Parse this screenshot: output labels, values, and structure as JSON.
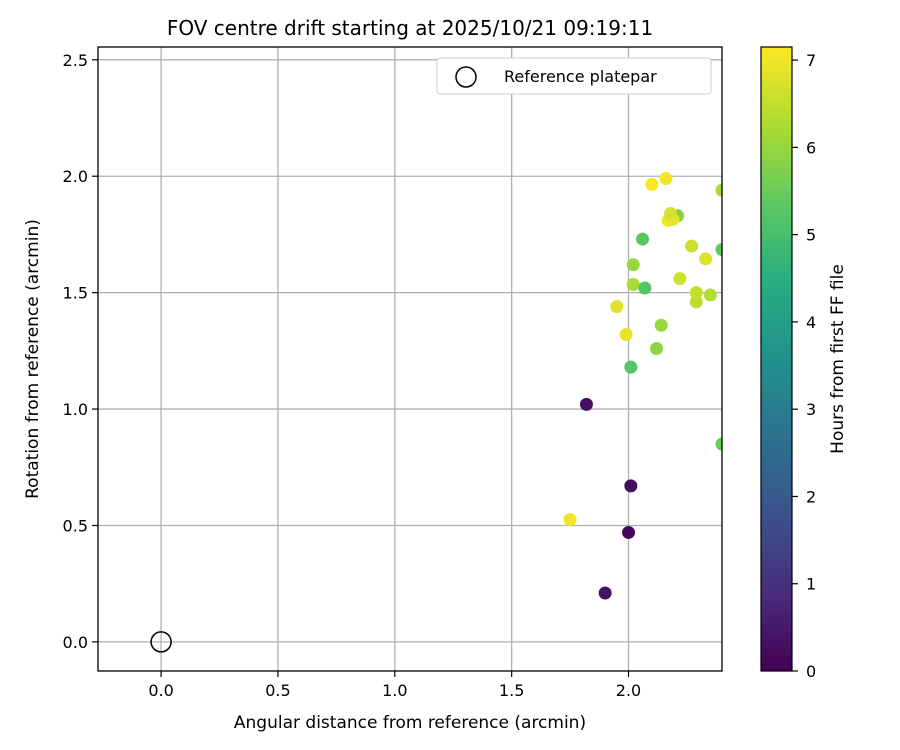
{
  "chart_data": {
    "type": "scatter",
    "title": "FOV centre drift starting at 2025/10/21 09:19:11",
    "xlabel": "Angular distance from reference (arcmin)",
    "ylabel": "Rotation from reference (arcmin)",
    "xlim": [
      -0.27,
      2.4
    ],
    "ylim": [
      -0.125,
      2.555
    ],
    "xticks": [
      0.0,
      0.5,
      1.0,
      1.5,
      2.0
    ],
    "xtick_labels": [
      "0.0",
      "0.5",
      "1.0",
      "1.5",
      "2.0"
    ],
    "yticks": [
      0.0,
      0.5,
      1.0,
      1.5,
      2.0,
      2.5
    ],
    "ytick_labels": [
      "0.0",
      "0.5",
      "1.0",
      "1.5",
      "2.0",
      "2.5"
    ],
    "grid": true,
    "legend": {
      "position": "top-right",
      "entries": [
        "Reference platepar"
      ]
    },
    "reference_point": {
      "x": 0.0,
      "y": 0.0
    },
    "colorbar": {
      "label": "Hours from first FF file",
      "colormap": "viridis",
      "range": [
        0,
        7.15
      ],
      "ticks": [
        0,
        1,
        2,
        3,
        4,
        5,
        6,
        7
      ],
      "tick_labels": [
        "0",
        "1",
        "2",
        "3",
        "4",
        "5",
        "6",
        "7"
      ]
    },
    "points": [
      {
        "x": 1.82,
        "y": 1.02,
        "hours": 0.3
      },
      {
        "x": 2.01,
        "y": 0.67,
        "hours": 0.2
      },
      {
        "x": 2.0,
        "y": 0.47,
        "hours": 0.15
      },
      {
        "x": 1.9,
        "y": 0.21,
        "hours": 0.4
      },
      {
        "x": 1.75,
        "y": 0.525,
        "hours": 7.0
      },
      {
        "x": 2.01,
        "y": 1.18,
        "hours": 5.2
      },
      {
        "x": 1.99,
        "y": 1.32,
        "hours": 6.9
      },
      {
        "x": 2.12,
        "y": 1.26,
        "hours": 5.9
      },
      {
        "x": 2.14,
        "y": 1.36,
        "hours": 6.0
      },
      {
        "x": 1.95,
        "y": 1.44,
        "hours": 6.8
      },
      {
        "x": 2.02,
        "y": 1.535,
        "hours": 6.2
      },
      {
        "x": 2.07,
        "y": 1.52,
        "hours": 5.2
      },
      {
        "x": 2.02,
        "y": 1.62,
        "hours": 6.0
      },
      {
        "x": 2.06,
        "y": 1.73,
        "hours": 5.3
      },
      {
        "x": 2.22,
        "y": 1.56,
        "hours": 6.6
      },
      {
        "x": 2.29,
        "y": 1.5,
        "hours": 6.5
      },
      {
        "x": 2.29,
        "y": 1.46,
        "hours": 6.4
      },
      {
        "x": 2.35,
        "y": 1.49,
        "hours": 6.3
      },
      {
        "x": 2.27,
        "y": 1.7,
        "hours": 6.6
      },
      {
        "x": 2.33,
        "y": 1.645,
        "hours": 6.8
      },
      {
        "x": 2.4,
        "y": 1.685,
        "hours": 5.4
      },
      {
        "x": 2.21,
        "y": 1.83,
        "hours": 5.8
      },
      {
        "x": 2.17,
        "y": 1.81,
        "hours": 7.0
      },
      {
        "x": 2.19,
        "y": 1.815,
        "hours": 6.9
      },
      {
        "x": 2.18,
        "y": 1.84,
        "hours": 6.7
      },
      {
        "x": 2.1,
        "y": 1.965,
        "hours": 7.1
      },
      {
        "x": 2.16,
        "y": 1.99,
        "hours": 7.05
      },
      {
        "x": 2.4,
        "y": 1.94,
        "hours": 6.2
      },
      {
        "x": 2.4,
        "y": 0.85,
        "hours": 5.5
      }
    ]
  }
}
